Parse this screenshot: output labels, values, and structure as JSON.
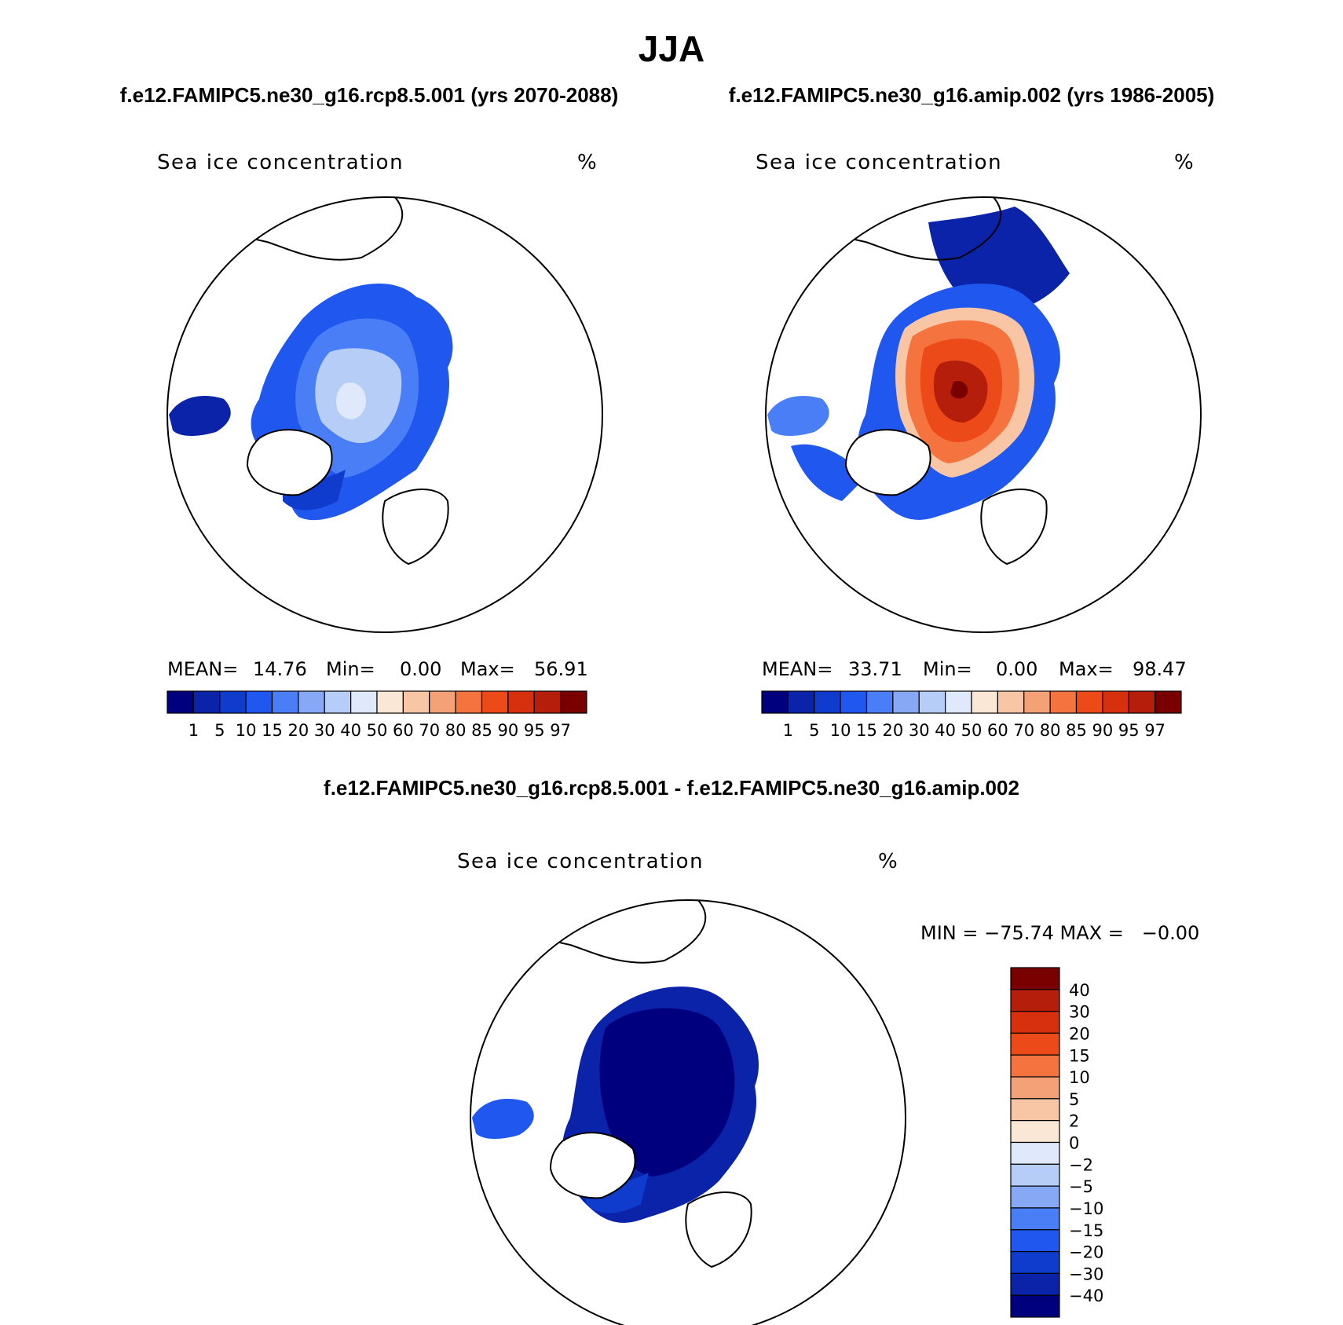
{
  "figure": {
    "title": "JJA",
    "left_case": "f.e12.FAMIPC5.ne30_g16.rcp8.5.001 (yrs 2070-2088)",
    "right_case": "f.e12.FAMIPC5.ne30_g16.amip.002 (yrs 1986-2005)",
    "diff_case": "f.e12.FAMIPC5.ne30_g16.rcp8.5.001 - f.e12.FAMIPC5.ne30_g16.amip.002"
  },
  "panels": {
    "p1": {
      "variable": "Sea ice concentration",
      "units": "%",
      "mean_label": "MEAN=",
      "mean": "14.76",
      "min_label": "Min=",
      "min": "0.00",
      "max_label": "Max=",
      "max": "56.91"
    },
    "p2": {
      "variable": "Sea ice concentration",
      "units": "%",
      "mean_label": "MEAN=",
      "mean": "33.71",
      "min_label": "Min=",
      "min": "0.00",
      "max_label": "Max=",
      "max": "98.47"
    },
    "p3": {
      "variable": "Sea ice concentration",
      "units": "%",
      "minmax": "MIN = −75.74 MAX =   −0.00"
    }
  },
  "colors": {
    "abs_scale": [
      "#00007f",
      "#0a23a9",
      "#0f3ccc",
      "#1f57ef",
      "#4a7ef7",
      "#86a8f5",
      "#b6cdf7",
      "#dfe9fb",
      "#fbe7d5",
      "#f8c6a5",
      "#f5a177",
      "#f4733e",
      "#ed4a1a",
      "#d7300e",
      "#b51e0b",
      "#7a0000"
    ],
    "diff_scale": [
      "#00007f",
      "#0a23a9",
      "#0f3ccc",
      "#1f57ef",
      "#4a7ef7",
      "#86a8f5",
      "#b6cdf7",
      "#dfe9fb",
      "#fbe7d5",
      "#f8c6a5",
      "#f5a177",
      "#f4733e",
      "#ed4a1a",
      "#d7300e",
      "#b51e0b",
      "#7a0000"
    ],
    "land_outline": "#000000"
  },
  "chart_data": [
    {
      "type": "heatmap",
      "projection": "north-polar-stereographic",
      "title": "Sea ice concentration",
      "units": "%",
      "stats": {
        "mean": 14.76,
        "min": 0.0,
        "max": 56.91
      },
      "colorbar_labels": [
        "1",
        "5",
        "10",
        "15",
        "20",
        "30",
        "40",
        "50",
        "60",
        "70",
        "80",
        "85",
        "90",
        "95",
        "97"
      ]
    },
    {
      "type": "heatmap",
      "projection": "north-polar-stereographic",
      "title": "Sea ice concentration",
      "units": "%",
      "stats": {
        "mean": 33.71,
        "min": 0.0,
        "max": 98.47
      },
      "colorbar_labels": [
        "1",
        "5",
        "10",
        "15",
        "20",
        "30",
        "40",
        "50",
        "60",
        "70",
        "80",
        "85",
        "90",
        "95",
        "97"
      ]
    },
    {
      "type": "heatmap",
      "projection": "north-polar-stereographic",
      "title": "Sea ice concentration",
      "units": "%",
      "stats": {
        "min": -75.74,
        "max": -0.0
      },
      "colorbar_labels": [
        "40",
        "30",
        "20",
        "15",
        "10",
        "5",
        "2",
        "0",
        "−2",
        "−5",
        "−10",
        "−15",
        "−20",
        "−30",
        "−40"
      ]
    }
  ]
}
